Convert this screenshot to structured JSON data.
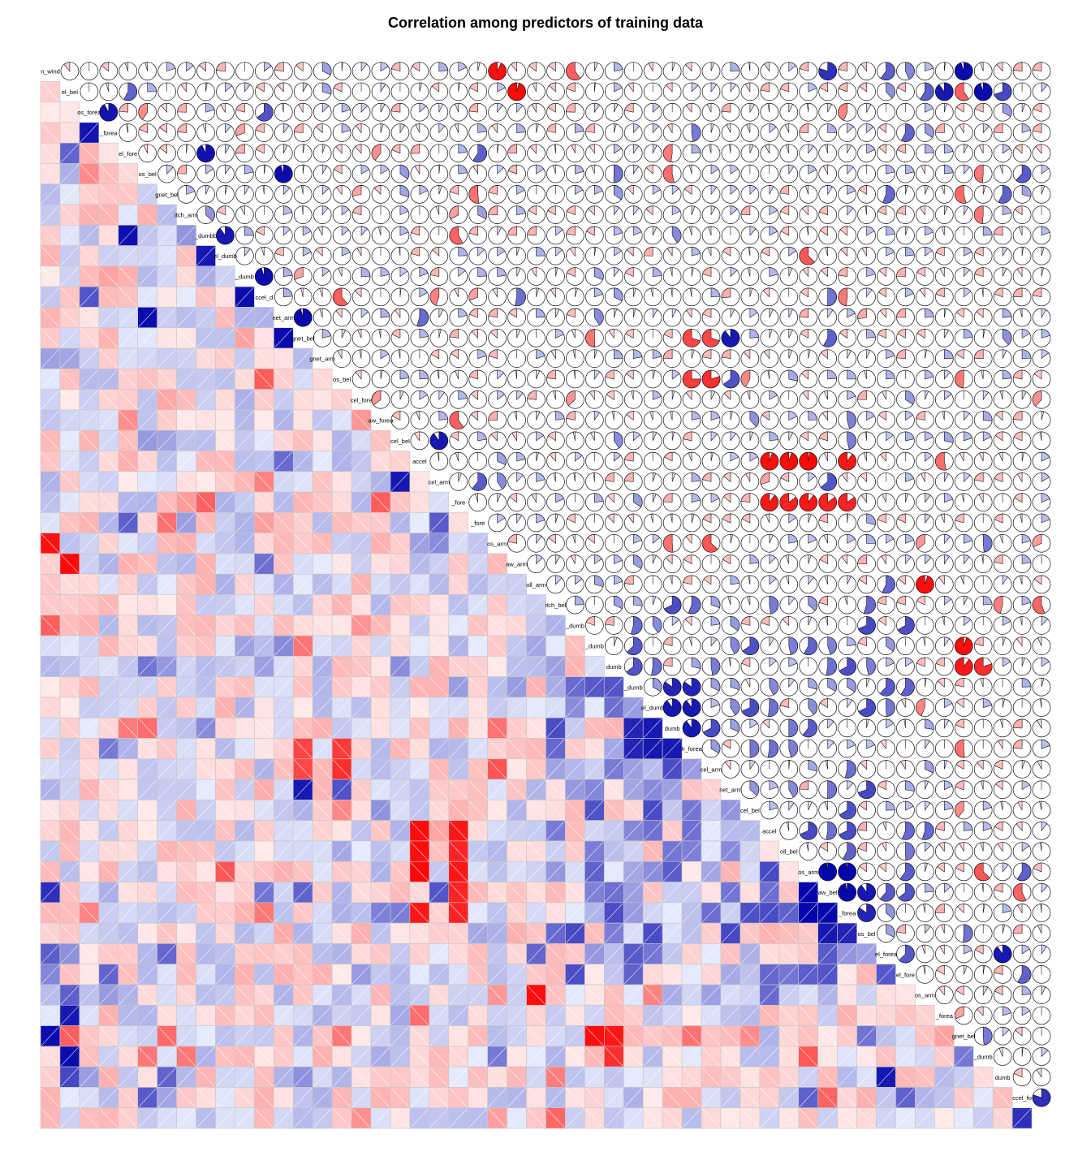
{
  "chart_data": {
    "type": "heatmap",
    "title": "Correlation among predictors of training data",
    "lower_panel": "shade",
    "upper_panel": "pie",
    "diagonal": "variable-names",
    "variable_count": 52,
    "diagonal_labels": [
      "n_wind",
      "el_bel",
      "os_forea",
      "_forea",
      "el_fore",
      "os_bel",
      "gnet_bel",
      "itch_arm",
      "_dumbb",
      "el_dumb",
      "_dumb",
      "ccel_d",
      "net_arm",
      "gnet_bel",
      "gnet_arm",
      "os_bel",
      "cel_fore",
      "aw_forea",
      "cel_bel",
      "accel",
      "cel_arm",
      "_fore",
      "_fore",
      "os_arm",
      "aw_arm",
      "oll_arm",
      "itch_bel",
      "_dumb",
      "_dumb",
      "dumb",
      "_dumb",
      "el_dumb",
      "dumb",
      "h_forea",
      "cel_arm",
      "net_arm",
      "cel_bel",
      "accel",
      "oll_bel",
      "os_arm",
      "aw_bel",
      "_forea",
      "os_bel",
      "el_forea",
      "el_fore",
      "os_arm",
      "_forea",
      "gnet_bel",
      "_dumb",
      "dumb",
      "ccel_fo",
      ""
    ],
    "positive_color": "#0000aa",
    "negative_color": "#ff0000",
    "value_range": [
      -1,
      1
    ],
    "correlation_pairs": [
      {
        "row": 1,
        "col": 24,
        "r": -0.93
      },
      {
        "row": 1,
        "col": 28,
        "r": -0.6
      },
      {
        "row": 1,
        "col": 41,
        "r": 0.8
      },
      {
        "row": 1,
        "col": 48,
        "r": 0.95
      },
      {
        "row": 1,
        "col": 44,
        "r": 0.6
      },
      {
        "row": 2,
        "col": 25,
        "r": -0.96
      },
      {
        "row": 2,
        "col": 47,
        "r": 0.9
      },
      {
        "row": 2,
        "col": 49,
        "r": 0.95
      },
      {
        "row": 2,
        "col": 50,
        "r": 0.7
      },
      {
        "row": 3,
        "col": 4,
        "r": 0.92
      },
      {
        "row": 5,
        "col": 9,
        "r": 0.93
      },
      {
        "row": 6,
        "col": 13,
        "r": 0.95
      },
      {
        "row": 9,
        "col": 10,
        "r": 0.9
      },
      {
        "row": 11,
        "col": 12,
        "r": 0.95
      },
      {
        "row": 13,
        "col": 14,
        "r": 0.96
      },
      {
        "row": 14,
        "col": 34,
        "r": -0.7
      },
      {
        "row": 14,
        "col": 35,
        "r": -0.7
      },
      {
        "row": 14,
        "col": 36,
        "r": 0.9
      },
      {
        "row": 16,
        "col": 34,
        "r": -0.75
      },
      {
        "row": 16,
        "col": 35,
        "r": -0.8
      },
      {
        "row": 16,
        "col": 36,
        "r": 0.65
      },
      {
        "row": 19,
        "col": 21,
        "r": 0.9
      },
      {
        "row": 20,
        "col": 38,
        "r": -0.95
      },
      {
        "row": 20,
        "col": 39,
        "r": -0.95
      },
      {
        "row": 20,
        "col": 40,
        "r": -0.97
      },
      {
        "row": 20,
        "col": 42,
        "r": -0.9
      },
      {
        "row": 22,
        "col": 38,
        "r": -0.9
      },
      {
        "row": 22,
        "col": 39,
        "r": -0.85
      },
      {
        "row": 22,
        "col": 40,
        "r": -0.9
      },
      {
        "row": 22,
        "col": 41,
        "r": -0.85
      },
      {
        "row": 22,
        "col": 42,
        "r": -0.85
      },
      {
        "row": 26,
        "col": 46,
        "r": -0.95
      },
      {
        "row": 29,
        "col": 48,
        "r": -0.95
      },
      {
        "row": 30,
        "col": 48,
        "r": -0.9
      },
      {
        "row": 30,
        "col": 49,
        "r": -0.8
      },
      {
        "row": 31,
        "col": 31,
        "r": 0.9
      },
      {
        "row": 31,
        "col": 33,
        "r": 0.85
      },
      {
        "row": 31,
        "col": 34,
        "r": 0.85
      },
      {
        "row": 32,
        "col": 33,
        "r": 0.9
      },
      {
        "row": 32,
        "col": 34,
        "r": 0.9
      },
      {
        "row": 33,
        "col": 34,
        "r": 0.9
      },
      {
        "row": 37,
        "col": 37,
        "r": 0.9
      },
      {
        "row": 40,
        "col": 41,
        "r": 0.98
      },
      {
        "row": 40,
        "col": 42,
        "r": 0.98
      },
      {
        "row": 41,
        "col": 42,
        "r": 0.97
      },
      {
        "row": 41,
        "col": 43,
        "r": 0.9
      },
      {
        "row": 42,
        "col": 43,
        "r": 0.85
      },
      {
        "row": 43,
        "col": 43,
        "r": 0.9
      },
      {
        "row": 44,
        "col": 50,
        "r": 0.9
      },
      {
        "row": 50,
        "col": 50,
        "r": 0.9
      },
      {
        "row": 51,
        "col": 52,
        "r": 0.8
      }
    ]
  }
}
